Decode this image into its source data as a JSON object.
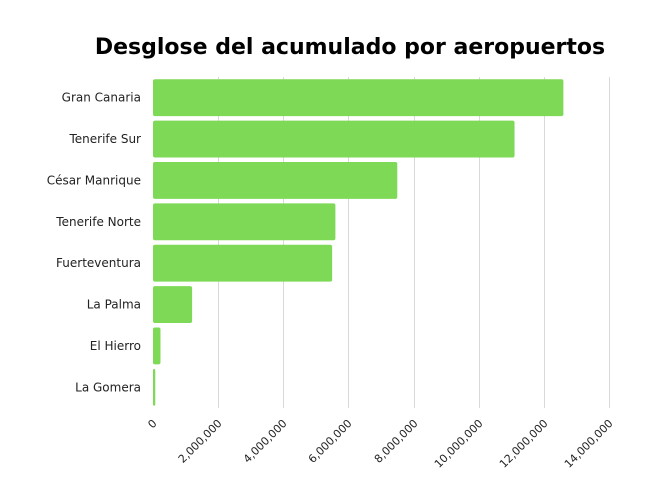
{
  "chart_data": {
    "type": "bar",
    "orientation": "horizontal",
    "title": "Desglose del acumulado por aeropuertos",
    "xlabel": "",
    "ylabel": "",
    "categories": [
      "Gran Canaria",
      "Tenerife Sur",
      "César Manrique",
      "Tenerife Norte",
      "Fuerteventura",
      "La Palma",
      "El Hierro",
      "La Gomera"
    ],
    "values": [
      12600000,
      11100000,
      7500000,
      5600000,
      5500000,
      1200000,
      230000,
      70000
    ],
    "xlim": [
      0,
      14000000
    ],
    "xticks": [
      0,
      2000000,
      4000000,
      6000000,
      8000000,
      10000000,
      12000000,
      14000000
    ],
    "xtick_labels": [
      "0",
      "2,000,000",
      "4,000,000",
      "6,000,000",
      "8,000,000",
      "10,000,000",
      "12,000,000",
      "14,000,000"
    ],
    "grid": "vertical",
    "legend": "none",
    "bar_color": "#7ed957"
  }
}
